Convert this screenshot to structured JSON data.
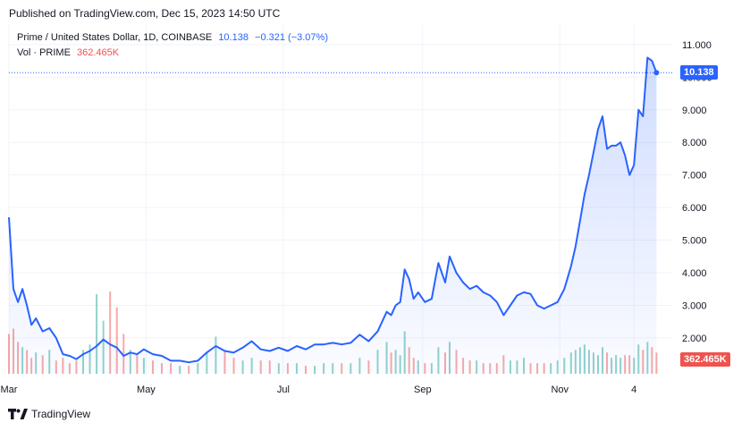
{
  "published": "Published on TradingView.com, Dec 15, 2023 14:50 UTC",
  "legend": {
    "symbol": "Prime / United States Dollar, 1D, COINBASE",
    "price": "10.138",
    "change": "−0.321 (−3.07%)",
    "vol_label": "Vol · PRIME",
    "vol_value": "362.465K"
  },
  "price_label": "10.138",
  "volume_label": "362.465K",
  "brand": "TradingView",
  "colors": {
    "line": "#2962ff",
    "up": "#26a69a",
    "down": "#ef5350",
    "grid": "#f0f3fa"
  },
  "chart_data": {
    "type": "area",
    "y_ticks": [
      "2.000",
      "3.000",
      "4.000",
      "5.000",
      "6.000",
      "7.000",
      "8.000",
      "9.000",
      "10.000",
      "11.000"
    ],
    "x_ticks": [
      {
        "label": "Mar",
        "date": "2023-03-01"
      },
      {
        "label": "May",
        "date": "2023-05-01"
      },
      {
        "label": "Jul",
        "date": "2023-07-01"
      },
      {
        "label": "Sep",
        "date": "2023-09-01"
      },
      {
        "label": "Nov",
        "date": "2023-11-01"
      },
      {
        "label": "4",
        "date": "2023-12-04"
      }
    ],
    "ylim": [
      0.9,
      11.6
    ],
    "xlim": [
      "2023-03-01",
      "2023-12-21"
    ],
    "series": [
      {
        "x": [
          "2023-03-01",
          "2023-03-03",
          "2023-03-05",
          "2023-03-07",
          "2023-03-09",
          "2023-03-11",
          "2023-03-13",
          "2023-03-16",
          "2023-03-19",
          "2023-03-22",
          "2023-03-25",
          "2023-03-28",
          "2023-03-31",
          "2023-04-03",
          "2023-04-06",
          "2023-04-09",
          "2023-04-12",
          "2023-04-15",
          "2023-04-18",
          "2023-04-21",
          "2023-04-24",
          "2023-04-27",
          "2023-04-30",
          "2023-05-04",
          "2023-05-08",
          "2023-05-12",
          "2023-05-16",
          "2023-05-20",
          "2023-05-24",
          "2023-05-28",
          "2023-06-01",
          "2023-06-05",
          "2023-06-09",
          "2023-06-13",
          "2023-06-17",
          "2023-06-21",
          "2023-06-25",
          "2023-06-29",
          "2023-07-03",
          "2023-07-07",
          "2023-07-11",
          "2023-07-15",
          "2023-07-19",
          "2023-07-23",
          "2023-07-27",
          "2023-07-31",
          "2023-08-04",
          "2023-08-08",
          "2023-08-12",
          "2023-08-16",
          "2023-08-18",
          "2023-08-20",
          "2023-08-22",
          "2023-08-24",
          "2023-08-26",
          "2023-08-28",
          "2023-08-30",
          "2023-09-02",
          "2023-09-05",
          "2023-09-08",
          "2023-09-11",
          "2023-09-13",
          "2023-09-16",
          "2023-09-19",
          "2023-09-22",
          "2023-09-25",
          "2023-09-28",
          "2023-10-01",
          "2023-10-04",
          "2023-10-07",
          "2023-10-10",
          "2023-10-13",
          "2023-10-16",
          "2023-10-19",
          "2023-10-22",
          "2023-10-25",
          "2023-10-28",
          "2023-10-31",
          "2023-11-03",
          "2023-11-06",
          "2023-11-08",
          "2023-11-10",
          "2023-11-12",
          "2023-11-14",
          "2023-11-16",
          "2023-11-18",
          "2023-11-20",
          "2023-11-22",
          "2023-11-24",
          "2023-11-26",
          "2023-11-28",
          "2023-11-30",
          "2023-12-02",
          "2023-12-04",
          "2023-12-06",
          "2023-12-08",
          "2023-12-10",
          "2023-12-12",
          "2023-12-14"
        ],
        "y": [
          5.7,
          3.5,
          3.1,
          3.5,
          3.0,
          2.4,
          2.6,
          2.2,
          2.3,
          2.0,
          1.5,
          1.45,
          1.35,
          1.5,
          1.6,
          1.75,
          1.95,
          1.8,
          1.7,
          1.45,
          1.55,
          1.5,
          1.65,
          1.5,
          1.45,
          1.3,
          1.3,
          1.25,
          1.3,
          1.55,
          1.75,
          1.6,
          1.55,
          1.7,
          1.9,
          1.65,
          1.6,
          1.7,
          1.6,
          1.75,
          1.65,
          1.8,
          1.8,
          1.85,
          1.8,
          1.85,
          2.1,
          1.9,
          2.2,
          2.8,
          2.7,
          3.0,
          3.1,
          4.1,
          3.8,
          3.2,
          3.4,
          3.1,
          3.2,
          4.3,
          3.7,
          4.5,
          4.0,
          3.7,
          3.5,
          3.6,
          3.4,
          3.3,
          3.1,
          2.7,
          3.0,
          3.3,
          3.4,
          3.35,
          3.0,
          2.9,
          3.0,
          3.1,
          3.5,
          4.2,
          4.8,
          5.6,
          6.4,
          7.0,
          7.7,
          8.4,
          8.8,
          7.8,
          7.9,
          7.9,
          8.0,
          7.6,
          7.0,
          7.3,
          9.0,
          8.8,
          10.6,
          10.5,
          10.138
        ]
      }
    ],
    "volume": {
      "label": "Vol · PRIME",
      "last": "362.465K",
      "values": [
        1.5,
        1.7,
        1.2,
        1.0,
        0.9,
        0.6,
        0.8,
        0.7,
        0.9,
        0.5,
        0.6,
        0.4,
        0.5,
        0.9,
        1.1,
        3.0,
        2.0,
        3.1,
        2.5,
        1.5,
        0.9,
        0.7,
        0.6,
        0.5,
        0.4,
        0.4,
        0.3,
        0.3,
        0.4,
        0.8,
        1.4,
        0.9,
        0.6,
        0.5,
        0.6,
        0.5,
        0.5,
        0.4,
        0.4,
        0.4,
        0.3,
        0.3,
        0.4,
        0.4,
        0.4,
        0.4,
        0.6,
        0.5,
        0.9,
        1.2,
        0.8,
        0.9,
        0.7,
        1.6,
        1.0,
        0.6,
        0.5,
        0.4,
        0.4,
        1.0,
        0.8,
        1.2,
        0.9,
        0.6,
        0.5,
        0.5,
        0.4,
        0.4,
        0.4,
        0.7,
        0.5,
        0.5,
        0.6,
        0.4,
        0.4,
        0.4,
        0.4,
        0.5,
        0.6,
        0.8,
        0.9,
        1.0,
        1.1,
        0.9,
        0.8,
        0.7,
        1.0,
        0.8,
        0.6,
        0.7,
        0.6,
        0.7,
        0.7,
        0.6,
        1.1,
        0.9,
        1.2,
        1.0,
        0.8
      ]
    }
  }
}
